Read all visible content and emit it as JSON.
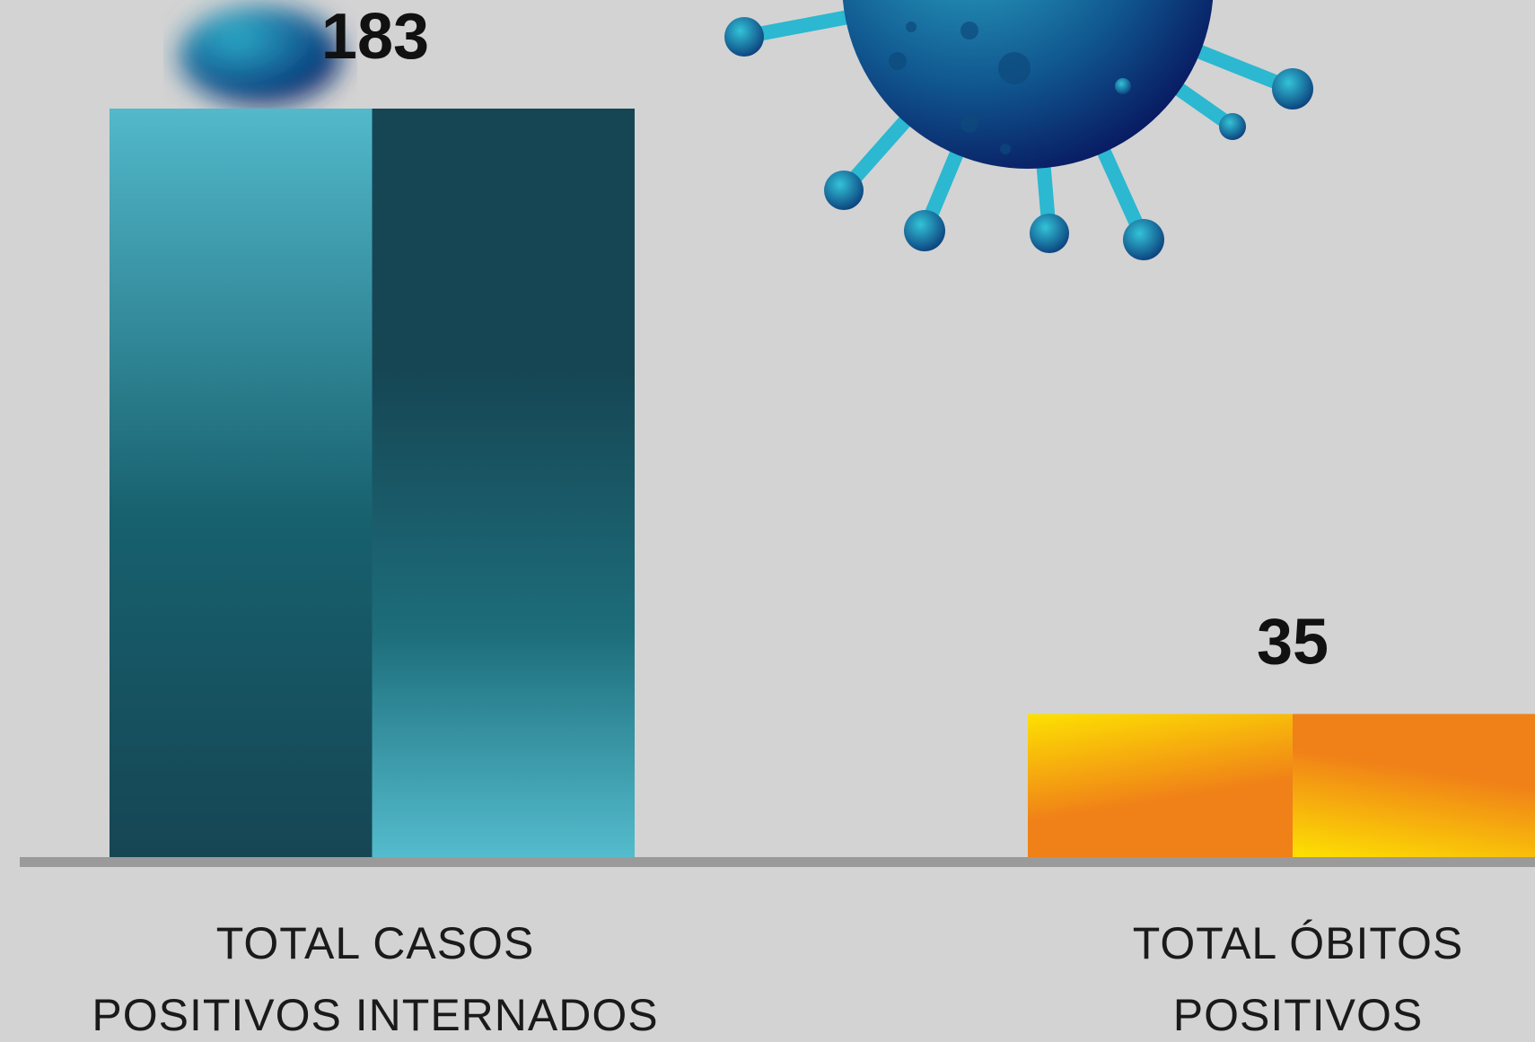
{
  "chart_data": {
    "type": "bar",
    "categories": [
      [
        "TOTAL CASOS",
        "POSITIVOS INTERNADOS"
      ],
      [
        "TOTAL ÓBITOS",
        "POSITIVOS"
      ]
    ],
    "values": [
      183,
      35
    ]
  }
}
